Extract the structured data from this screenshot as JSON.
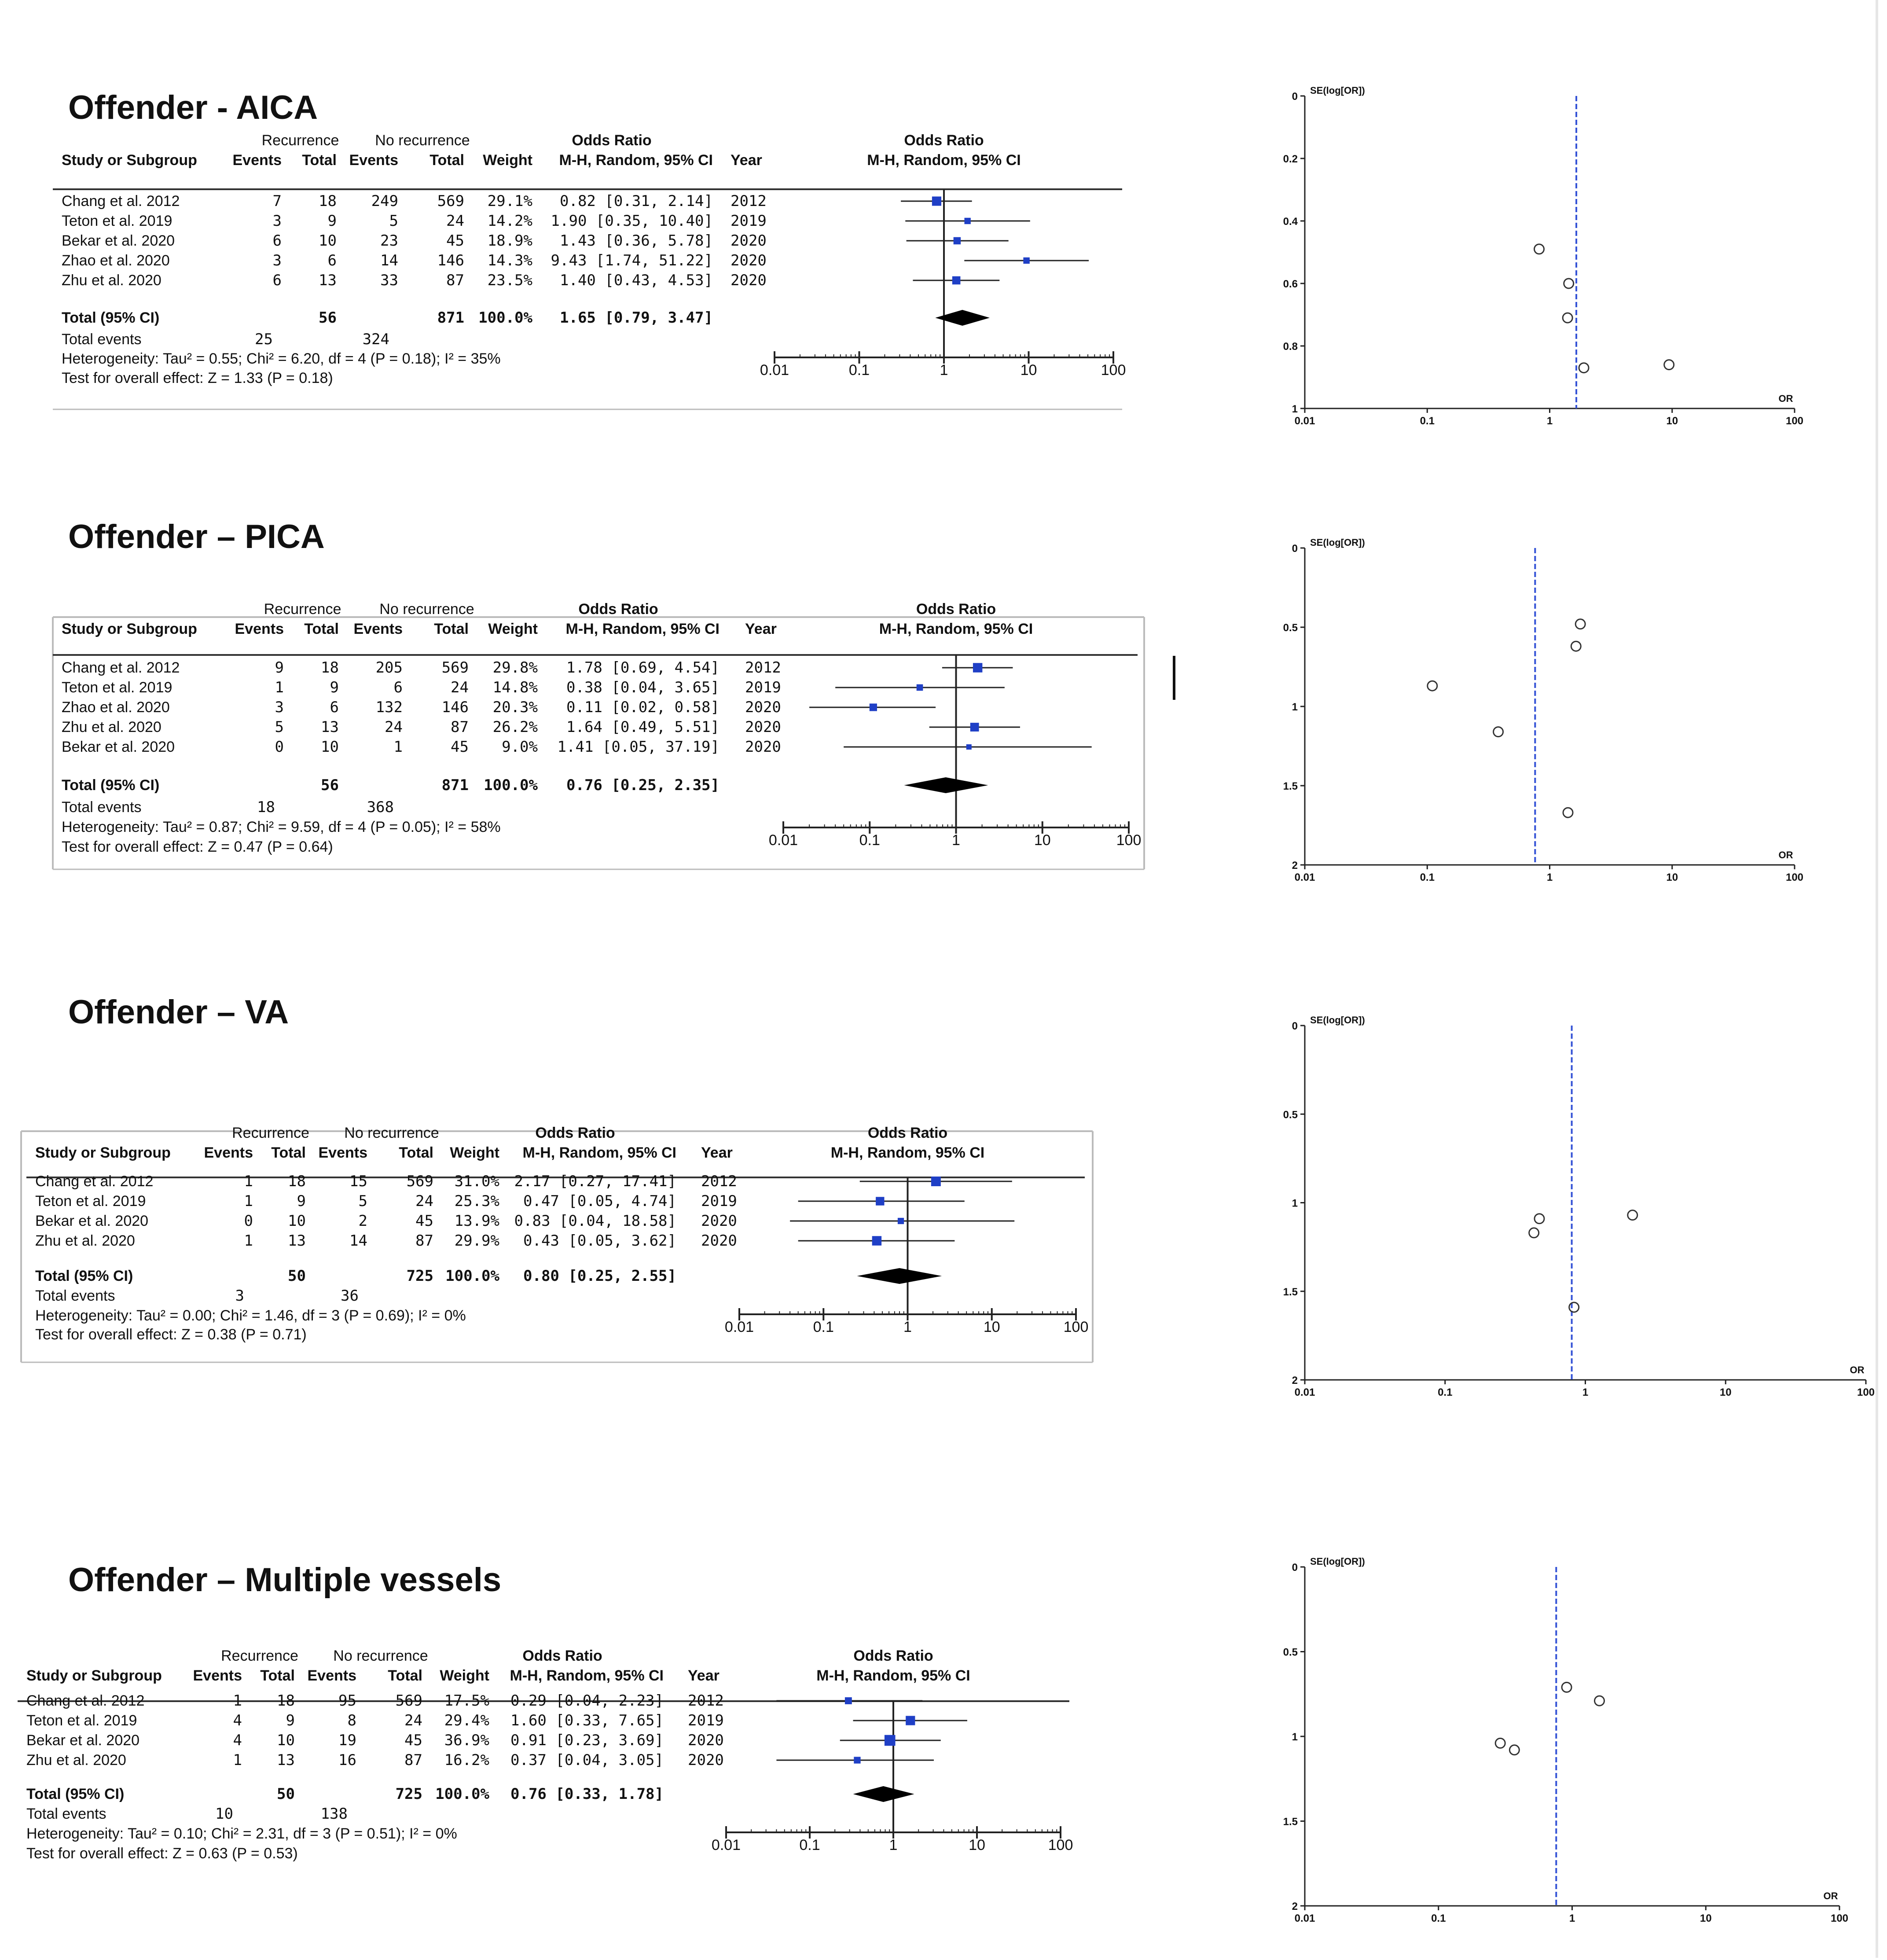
{
  "colors": {
    "marker": "#1f3fc6",
    "line": "#222222",
    "pooled_line": "#3553d6",
    "background": "#ffffff"
  },
  "headers": {
    "recurrence": "Recurrence",
    "no_recurrence": "No recurrence",
    "odds_ratio": "Odds Ratio",
    "study": "Study or Subgroup",
    "events": "Events",
    "total": "Total",
    "weight": "Weight",
    "method": "M-H, Random, 95% CI",
    "year": "Year",
    "plot_method": "M-H, Random, 95% CI"
  },
  "labels": {
    "total_events": "Total events",
    "funnel_y": "SE(log[OR])",
    "funnel_x": "OR"
  },
  "forest_axis_ticks": [
    "0.01",
    "0.1",
    "1",
    "10",
    "100"
  ],
  "funnel_x_ticks": [
    "0.01",
    "0.1",
    "1",
    "10",
    "100"
  ],
  "chart_data": [
    {
      "type": "forest",
      "title": "Offender - AICA",
      "studies": [
        {
          "name": "Chang et al. 2012",
          "e1": "7",
          "t1": "18",
          "e2": "249",
          "t2": "569",
          "weight": "29.1%",
          "ci_text": "0.82 [0.31, 2.14]",
          "year": "2012",
          "or": 0.82,
          "lo": 0.31,
          "hi": 2.14
        },
        {
          "name": "Teton et al. 2019",
          "e1": "3",
          "t1": "9",
          "e2": "5",
          "t2": "24",
          "weight": "14.2%",
          "ci_text": "1.90 [0.35, 10.40]",
          "year": "2019",
          "or": 1.9,
          "lo": 0.35,
          "hi": 10.4
        },
        {
          "name": "Bekar et al. 2020",
          "e1": "6",
          "t1": "10",
          "e2": "23",
          "t2": "45",
          "weight": "18.9%",
          "ci_text": "1.43 [0.36, 5.78]",
          "year": "2020",
          "or": 1.43,
          "lo": 0.36,
          "hi": 5.78
        },
        {
          "name": "Zhao et al. 2020",
          "e1": "3",
          "t1": "6",
          "e2": "14",
          "t2": "146",
          "weight": "14.3%",
          "ci_text": "9.43 [1.74, 51.22]",
          "year": "2020",
          "or": 9.43,
          "lo": 1.74,
          "hi": 51.22
        },
        {
          "name": "Zhu et al. 2020",
          "e1": "6",
          "t1": "13",
          "e2": "33",
          "t2": "87",
          "weight": "23.5%",
          "ci_text": "1.40 [0.43, 4.53]",
          "year": "2020",
          "or": 1.4,
          "lo": 0.43,
          "hi": 4.53
        }
      ],
      "total": {
        "label": "Total (95% CI)",
        "t1": "56",
        "t2": "871",
        "weight": "100.0%",
        "ci_text": "1.65 [0.79, 3.47]",
        "or": 1.65,
        "lo": 0.79,
        "hi": 3.47
      },
      "total_events": {
        "e1": "25",
        "e2": "324"
      },
      "heterogeneity": "Heterogeneity: Tau² = 0.55; Chi² = 6.20, df = 4 (P = 0.18); I² = 35%",
      "overall_effect": "Test for overall effect: Z = 1.33 (P = 0.18)",
      "funnel": {
        "pooled_or": 1.65,
        "y_ticks": [
          "0",
          "0.2",
          "0.4",
          "0.6",
          "0.8",
          "1"
        ],
        "y_max": 1,
        "points": [
          {
            "or": 0.82,
            "se": 0.49
          },
          {
            "or": 1.43,
            "se": 0.6
          },
          {
            "or": 1.4,
            "se": 0.71
          },
          {
            "or": 1.9,
            "se": 0.87
          },
          {
            "or": 9.43,
            "se": 0.86
          }
        ]
      }
    },
    {
      "type": "forest",
      "title": "Offender – PICA",
      "studies": [
        {
          "name": "Chang et al. 2012",
          "e1": "9",
          "t1": "18",
          "e2": "205",
          "t2": "569",
          "weight": "29.8%",
          "ci_text": "1.78 [0.69, 4.54]",
          "year": "2012",
          "or": 1.78,
          "lo": 0.69,
          "hi": 4.54
        },
        {
          "name": "Teton et al. 2019",
          "e1": "1",
          "t1": "9",
          "e2": "6",
          "t2": "24",
          "weight": "14.8%",
          "ci_text": "0.38 [0.04, 3.65]",
          "year": "2019",
          "or": 0.38,
          "lo": 0.04,
          "hi": 3.65
        },
        {
          "name": "Zhao et al. 2020",
          "e1": "3",
          "t1": "6",
          "e2": "132",
          "t2": "146",
          "weight": "20.3%",
          "ci_text": "0.11 [0.02, 0.58]",
          "year": "2020",
          "or": 0.11,
          "lo": 0.02,
          "hi": 0.58
        },
        {
          "name": "Zhu et al. 2020",
          "e1": "5",
          "t1": "13",
          "e2": "24",
          "t2": "87",
          "weight": "26.2%",
          "ci_text": "1.64 [0.49, 5.51]",
          "year": "2020",
          "or": 1.64,
          "lo": 0.49,
          "hi": 5.51
        },
        {
          "name": "Bekar et al. 2020",
          "e1": "0",
          "t1": "10",
          "e2": "1",
          "t2": "45",
          "weight": "9.0%",
          "ci_text": "1.41 [0.05, 37.19]",
          "year": "2020",
          "or": 1.41,
          "lo": 0.05,
          "hi": 37.19
        }
      ],
      "total": {
        "label": "Total (95% CI)",
        "t1": "56",
        "t2": "871",
        "weight": "100.0%",
        "ci_text": "0.76 [0.25, 2.35]",
        "or": 0.76,
        "lo": 0.25,
        "hi": 2.35
      },
      "total_events": {
        "e1": "18",
        "e2": "368"
      },
      "heterogeneity": "Heterogeneity: Tau² = 0.87; Chi² = 9.59, df = 4 (P = 0.05); I² = 58%",
      "overall_effect": "Test for overall effect: Z = 0.47 (P = 0.64)",
      "funnel": {
        "pooled_or": 0.76,
        "y_ticks": [
          "0",
          "0.5",
          "1",
          "1.5",
          "2"
        ],
        "y_max": 2,
        "points": [
          {
            "or": 1.78,
            "se": 0.48
          },
          {
            "or": 1.64,
            "se": 0.62
          },
          {
            "or": 0.11,
            "se": 0.87
          },
          {
            "or": 0.38,
            "se": 1.16
          },
          {
            "or": 1.41,
            "se": 1.67
          }
        ]
      }
    },
    {
      "type": "forest",
      "title": "Offender – VA",
      "studies": [
        {
          "name": "Chang et al. 2012",
          "e1": "1",
          "t1": "18",
          "e2": "15",
          "t2": "569",
          "weight": "31.0%",
          "ci_text": "2.17 [0.27, 17.41]",
          "year": "2012",
          "or": 2.17,
          "lo": 0.27,
          "hi": 17.41
        },
        {
          "name": "Teton et al. 2019",
          "e1": "1",
          "t1": "9",
          "e2": "5",
          "t2": "24",
          "weight": "25.3%",
          "ci_text": "0.47 [0.05, 4.74]",
          "year": "2019",
          "or": 0.47,
          "lo": 0.05,
          "hi": 4.74
        },
        {
          "name": "Bekar et al. 2020",
          "e1": "0",
          "t1": "10",
          "e2": "2",
          "t2": "45",
          "weight": "13.9%",
          "ci_text": "0.83 [0.04, 18.58]",
          "year": "2020",
          "or": 0.83,
          "lo": 0.04,
          "hi": 18.58
        },
        {
          "name": "Zhu et al. 2020",
          "e1": "1",
          "t1": "13",
          "e2": "14",
          "t2": "87",
          "weight": "29.9%",
          "ci_text": "0.43 [0.05, 3.62]",
          "year": "2020",
          "or": 0.43,
          "lo": 0.05,
          "hi": 3.62
        }
      ],
      "total": {
        "label": "Total (95% CI)",
        "t1": "50",
        "t2": "725",
        "weight": "100.0%",
        "ci_text": "0.80 [0.25, 2.55]",
        "or": 0.8,
        "lo": 0.25,
        "hi": 2.55
      },
      "total_events": {
        "e1": "3",
        "e2": "36"
      },
      "heterogeneity": "Heterogeneity: Tau² = 0.00; Chi² = 1.46, df = 3 (P = 0.69); I² = 0%",
      "overall_effect": "Test for overall effect: Z = 0.38 (P = 0.71)",
      "funnel": {
        "pooled_or": 0.8,
        "y_ticks": [
          "0",
          "0.5",
          "1",
          "1.5",
          "2"
        ],
        "y_max": 2,
        "points": [
          {
            "or": 2.17,
            "se": 1.07
          },
          {
            "or": 0.47,
            "se": 1.09
          },
          {
            "or": 0.43,
            "se": 1.17
          },
          {
            "or": 0.83,
            "se": 1.59
          }
        ]
      }
    },
    {
      "type": "forest",
      "title": "Offender – Multiple vessels",
      "studies": [
        {
          "name": "Chang et al. 2012",
          "e1": "1",
          "t1": "18",
          "e2": "95",
          "t2": "569",
          "weight": "17.5%",
          "ci_text": "0.29 [0.04, 2.23]",
          "year": "2012",
          "or": 0.29,
          "lo": 0.04,
          "hi": 2.23
        },
        {
          "name": "Teton et al. 2019",
          "e1": "4",
          "t1": "9",
          "e2": "8",
          "t2": "24",
          "weight": "29.4%",
          "ci_text": "1.60 [0.33, 7.65]",
          "year": "2019",
          "or": 1.6,
          "lo": 0.33,
          "hi": 7.65
        },
        {
          "name": "Bekar et al. 2020",
          "e1": "4",
          "t1": "10",
          "e2": "19",
          "t2": "45",
          "weight": "36.9%",
          "ci_text": "0.91 [0.23, 3.69]",
          "year": "2020",
          "or": 0.91,
          "lo": 0.23,
          "hi": 3.69
        },
        {
          "name": "Zhu et al. 2020",
          "e1": "1",
          "t1": "13",
          "e2": "16",
          "t2": "87",
          "weight": "16.2%",
          "ci_text": "0.37 [0.04, 3.05]",
          "year": "2020",
          "or": 0.37,
          "lo": 0.04,
          "hi": 3.05
        }
      ],
      "total": {
        "label": "Total (95% CI)",
        "t1": "50",
        "t2": "725",
        "weight": "100.0%",
        "ci_text": "0.76 [0.33, 1.78]",
        "or": 0.76,
        "lo": 0.33,
        "hi": 1.78
      },
      "total_events": {
        "e1": "10",
        "e2": "138"
      },
      "heterogeneity": "Heterogeneity: Tau² = 0.10; Chi² = 2.31, df = 3 (P = 0.51); I² = 0%",
      "overall_effect": "Test for overall effect: Z = 0.63 (P = 0.53)",
      "funnel": {
        "pooled_or": 0.76,
        "y_ticks": [
          "0",
          "0.5",
          "1",
          "1.5",
          "2"
        ],
        "y_max": 2,
        "points": [
          {
            "or": 1.6,
            "se": 0.79
          },
          {
            "or": 0.91,
            "se": 0.71
          },
          {
            "or": 0.29,
            "se": 1.04
          },
          {
            "or": 0.37,
            "se": 1.08
          }
        ]
      }
    }
  ]
}
